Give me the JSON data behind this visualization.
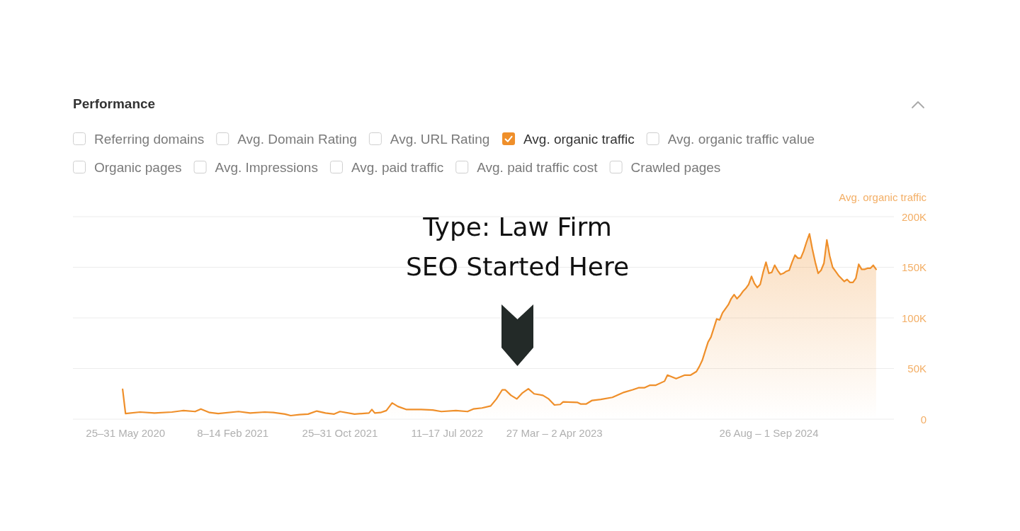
{
  "chart_data": {
    "type": "area",
    "title": "Performance",
    "ylabel": "Avg. organic traffic",
    "x": [
      "2020-05-18",
      "2020-05-25",
      "2020-06-29",
      "2020-08-03",
      "2020-09-14",
      "2020-10-12",
      "2020-11-09",
      "2020-11-23",
      "2020-12-14",
      "2021-01-04",
      "2021-02-22",
      "2021-03-22",
      "2021-04-26",
      "2021-05-17",
      "2021-06-14",
      "2021-06-28",
      "2021-07-19",
      "2021-08-09",
      "2021-08-30",
      "2021-09-20",
      "2021-10-11",
      "2021-10-25",
      "2021-11-29",
      "2022-01-03",
      "2022-01-10",
      "2022-01-17",
      "2022-01-31",
      "2022-02-14",
      "2022-02-28",
      "2022-03-14",
      "2022-04-04",
      "2022-05-09",
      "2022-06-06",
      "2022-06-27",
      "2022-08-01",
      "2022-08-29",
      "2022-09-12",
      "2022-10-03",
      "2022-10-24",
      "2022-11-07",
      "2022-11-21",
      "2022-11-28",
      "2022-12-12",
      "2022-12-26",
      "2023-01-09",
      "2023-01-23",
      "2023-02-06",
      "2023-02-27",
      "2023-03-13",
      "2023-03-27",
      "2023-04-10",
      "2023-04-17",
      "2023-05-22",
      "2023-05-29",
      "2023-06-12",
      "2023-06-26",
      "2023-07-17",
      "2023-08-14",
      "2023-09-11",
      "2023-10-02",
      "2023-10-16",
      "2023-10-30",
      "2023-11-13",
      "2023-11-27",
      "2023-12-18",
      "2023-12-25",
      "2024-01-15",
      "2024-02-05",
      "2024-02-19",
      "2024-03-04",
      "2024-03-11",
      "2024-03-18",
      "2024-03-25",
      "2024-04-01",
      "2024-04-08",
      "2024-04-15",
      "2024-04-22",
      "2024-04-29",
      "2024-05-06",
      "2024-05-13",
      "2024-05-20",
      "2024-05-27",
      "2024-06-03",
      "2024-06-10",
      "2024-06-17",
      "2024-06-24",
      "2024-07-01",
      "2024-07-08",
      "2024-07-15",
      "2024-07-22",
      "2024-07-29",
      "2024-08-05",
      "2024-08-12",
      "2024-08-19",
      "2024-08-26",
      "2024-09-02",
      "2024-09-09",
      "2024-09-16",
      "2024-09-23",
      "2024-09-30",
      "2024-10-07",
      "2024-10-14",
      "2024-10-21",
      "2024-10-28",
      "2024-11-04",
      "2024-11-11",
      "2024-11-18",
      "2024-11-25",
      "2024-12-02",
      "2024-12-09",
      "2024-12-16",
      "2024-12-23",
      "2024-12-30",
      "2025-01-06",
      "2025-01-13",
      "2025-01-20",
      "2025-01-27",
      "2025-02-03",
      "2025-02-10",
      "2025-02-17",
      "2025-02-24",
      "2025-03-03",
      "2025-03-10",
      "2025-03-17",
      "2025-03-24",
      "2025-03-31",
      "2025-04-07",
      "2025-04-14",
      "2025-04-21",
      "2025-04-28",
      "2025-05-05",
      "2025-05-12"
    ],
    "series": [
      {
        "name": "Avg. organic traffic",
        "color": "#ef8f2a",
        "values": [
          29500,
          5500,
          7000,
          6000,
          7000,
          8500,
          7500,
          10000,
          6500,
          5500,
          7500,
          6000,
          7000,
          6500,
          5000,
          3500,
          4500,
          5000,
          8000,
          6000,
          5000,
          7500,
          5000,
          6000,
          9500,
          6000,
          6500,
          8500,
          16000,
          12500,
          9500,
          9500,
          9000,
          7500,
          8500,
          7500,
          10000,
          11000,
          13000,
          20000,
          29000,
          29000,
          23500,
          20000,
          26000,
          30000,
          25000,
          23500,
          20000,
          14000,
          14500,
          17000,
          16500,
          15000,
          15000,
          18500,
          19500,
          21500,
          26500,
          29000,
          31000,
          31000,
          33500,
          33500,
          37500,
          43500,
          40000,
          43500,
          43500,
          47000,
          52000,
          58000,
          67000,
          76000,
          81000,
          90000,
          99000,
          98000,
          105000,
          109000,
          113000,
          119000,
          123000,
          119000,
          122000,
          126000,
          129000,
          133000,
          141000,
          134000,
          130000,
          133000,
          145000,
          155000,
          144000,
          145000,
          152000,
          147000,
          143000,
          144000,
          146000,
          147000,
          155000,
          162000,
          159000,
          159000,
          166000,
          175000,
          183000,
          168000,
          155000,
          144000,
          147000,
          154000,
          177000,
          161000,
          150000,
          146000,
          142000,
          139000,
          136000,
          138000,
          135000,
          135000,
          139000,
          153000,
          148000,
          148000,
          149000,
          149000,
          152000,
          148000
        ]
      }
    ],
    "xlim": [
      "2020-01-19",
      "2025-06-24"
    ],
    "xticks": [
      {
        "value": "2020-05-25",
        "label": "25–31 May 2020"
      },
      {
        "value": "2021-02-08",
        "label": "8–14 Feb 2021"
      },
      {
        "value": "2021-10-25",
        "label": "25–31 Oct 2021"
      },
      {
        "value": "2022-07-11",
        "label": "11–17 Jul 2022"
      },
      {
        "value": "2023-03-27",
        "label": "27 Mar – 2 Apr 2023"
      },
      {
        "value": "2024-08-26",
        "label": "26 Aug – 1 Sep 2024"
      }
    ],
    "ylim": [
      0,
      200000
    ],
    "yticks": [
      0,
      {
        "value": 50000,
        "label": "50K"
      },
      {
        "value": 100000,
        "label": "100K"
      },
      {
        "value": 150000,
        "label": "150K"
      },
      {
        "value": 200000,
        "label": "200K"
      }
    ],
    "grid": "y",
    "legend": "top",
    "annotations": [
      "Referring domains",
      "Avg. Domain Rating",
      "Avg. URL Rating",
      "Avg. organic traffic value",
      "Organic pages",
      "Avg. Impressions",
      "Avg. paid traffic",
      "Avg. paid traffic cost",
      "Crawled pages",
      "Type: Law Firm\nSEO Started Here"
    ]
  }
}
